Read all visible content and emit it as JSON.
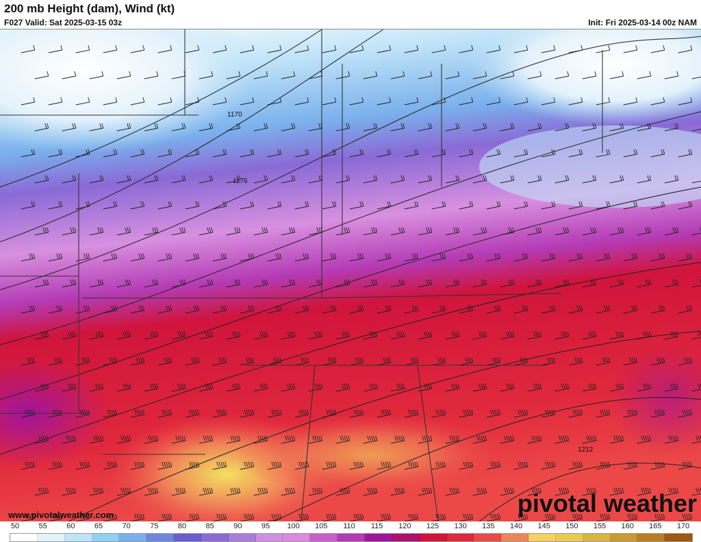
{
  "header": {
    "title": "200 mb Height (dam), Wind (kt)",
    "valid": "F027 Valid: Sat 2025-03-15 03z",
    "init": "Init: Fri 2025-03-14 00z NAM"
  },
  "map": {
    "contour_labels": [
      "1170",
      "1176",
      "1212"
    ]
  },
  "footer": {
    "website": "www.pivotalweather.com",
    "brand": "pivotal weather"
  },
  "colorbar": {
    "labels": [
      "50",
      "55",
      "60",
      "65",
      "70",
      "75",
      "80",
      "85",
      "90",
      "95",
      "100",
      "105",
      "110",
      "115",
      "120",
      "125",
      "130",
      "135",
      "140",
      "145",
      "150",
      "155",
      "160",
      "165",
      "170"
    ],
    "colors": [
      "#ffffff",
      "#e4f2fb",
      "#bfe3f8",
      "#8fd0f5",
      "#7ab0ec",
      "#6e86df",
      "#6a5fd0",
      "#8a6ad6",
      "#a77ed8",
      "#d08fe0",
      "#dc8ade",
      "#c95ec9",
      "#b43ab4",
      "#a0149c",
      "#b0106e",
      "#d0143c",
      "#e0283c",
      "#ec4848",
      "#f08458",
      "#f4d060",
      "#e8cc50",
      "#d8b640",
      "#c89a30",
      "#b87e20",
      "#a05a10"
    ]
  }
}
